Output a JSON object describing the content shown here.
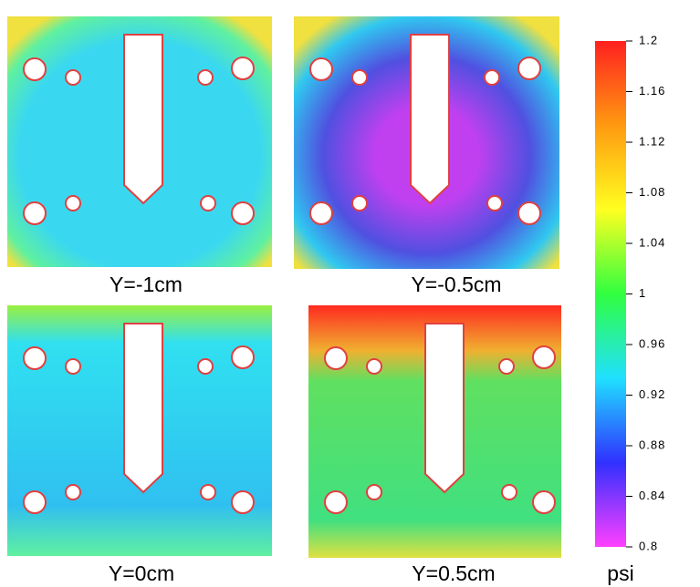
{
  "chart_data": {
    "type": "heatmap",
    "panels": [
      "Y=-1cm",
      "Y=-0.5cm",
      "Y=0cm",
      "Y=0.5cm"
    ],
    "colorbar": {
      "label": "psi",
      "lim": [
        0.8,
        1.2
      ],
      "ticks": [
        0.8,
        0.84,
        0.88,
        0.92,
        0.96,
        1,
        1.04,
        1.08,
        1.12,
        1.16,
        1.2
      ],
      "colors": [
        "#ff40ff",
        "#3030ff",
        "#20e0ff",
        "#30ff40",
        "#ffff20",
        "#ff9a10",
        "#ff2020"
      ]
    }
  }
}
